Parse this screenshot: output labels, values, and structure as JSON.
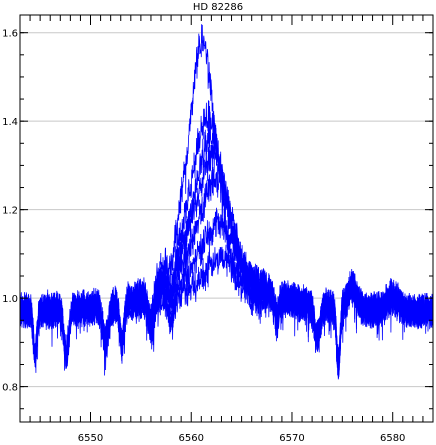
{
  "chart_data": {
    "type": "line",
    "title": "HD 82286",
    "xlabel": "",
    "ylabel": "",
    "xlim": [
      6543,
      6584
    ],
    "ylim": [
      0.72,
      1.64
    ],
    "x_ticks": [
      6550,
      6560,
      6570,
      6580
    ],
    "x_tick_labels": [
      "6550",
      "6560",
      "6570",
      "6580"
    ],
    "y_ticks": [
      0.8,
      1.0,
      1.2,
      1.4,
      1.6
    ],
    "y_tick_labels": [
      "0.8",
      "1.0",
      "1.2",
      "1.4",
      "1.6"
    ],
    "grid": "horizontal",
    "line_color": "#0000ff",
    "series": [
      {
        "peak": 1.62,
        "center": 6561.1,
        "width": 2.1,
        "valley": 0.93
      },
      {
        "peak": 1.45,
        "center": 6561.6,
        "width": 2.5,
        "valley": 0.95
      },
      {
        "peak": 1.4,
        "center": 6561.9,
        "width": 2.6,
        "valley": 0.95
      },
      {
        "peak": 1.36,
        "center": 6562.1,
        "width": 2.8,
        "valley": 0.96
      },
      {
        "peak": 1.3,
        "center": 6562.4,
        "width": 2.9,
        "valley": 0.96
      },
      {
        "peak": 1.2,
        "center": 6562.7,
        "width": 3.1,
        "valley": 0.97
      },
      {
        "peak": 1.12,
        "center": 6563.1,
        "width": 3.3,
        "valley": 0.97
      }
    ]
  }
}
